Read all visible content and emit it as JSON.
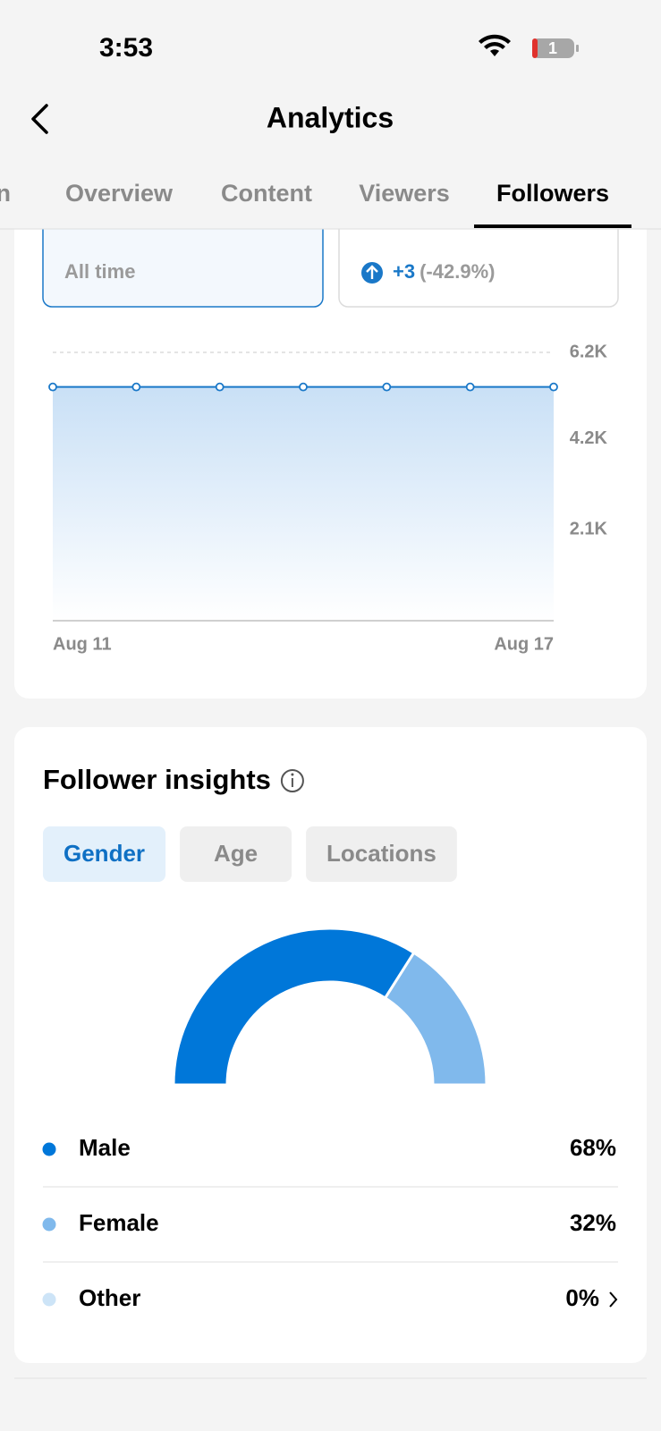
{
  "status_bar": {
    "time": "3:53",
    "battery": "1"
  },
  "header": {
    "title": "Analytics"
  },
  "tabs": {
    "items": [
      "on",
      "Overview",
      "Content",
      "Viewers",
      "Followers"
    ],
    "active": 4
  },
  "summary_cards": [
    {
      "label": "All time"
    },
    {
      "change": "+3",
      "change_pct": "(-42.9%)"
    }
  ],
  "insights": {
    "title": "Follower insights",
    "filters": [
      "Gender",
      "Age",
      "Locations"
    ],
    "active_filter": 0
  },
  "chart_data": [
    {
      "type": "line",
      "x": [
        "Aug 11",
        null,
        null,
        null,
        null,
        null,
        "Aug 17"
      ],
      "values": [
        5401,
        5401,
        5401,
        5401,
        5401,
        5401,
        5401
      ],
      "color": "#1a78c8",
      "ylim": [
        0,
        6200
      ],
      "yticks": [
        {
          "value": 2100,
          "label": "2.1K"
        },
        {
          "value": 4200,
          "label": "4.2K"
        },
        {
          "value": 6200,
          "label": "6.2K"
        }
      ],
      "grid": true
    },
    {
      "type": "pie",
      "half": true,
      "categories": [
        "Male",
        "Female",
        "Other"
      ],
      "values": [
        68,
        32,
        0
      ],
      "value_labels": [
        "68%",
        "32%",
        "0%"
      ],
      "colors": [
        "#0077d9",
        "#80b9ec",
        "#cde4f7"
      ]
    }
  ]
}
